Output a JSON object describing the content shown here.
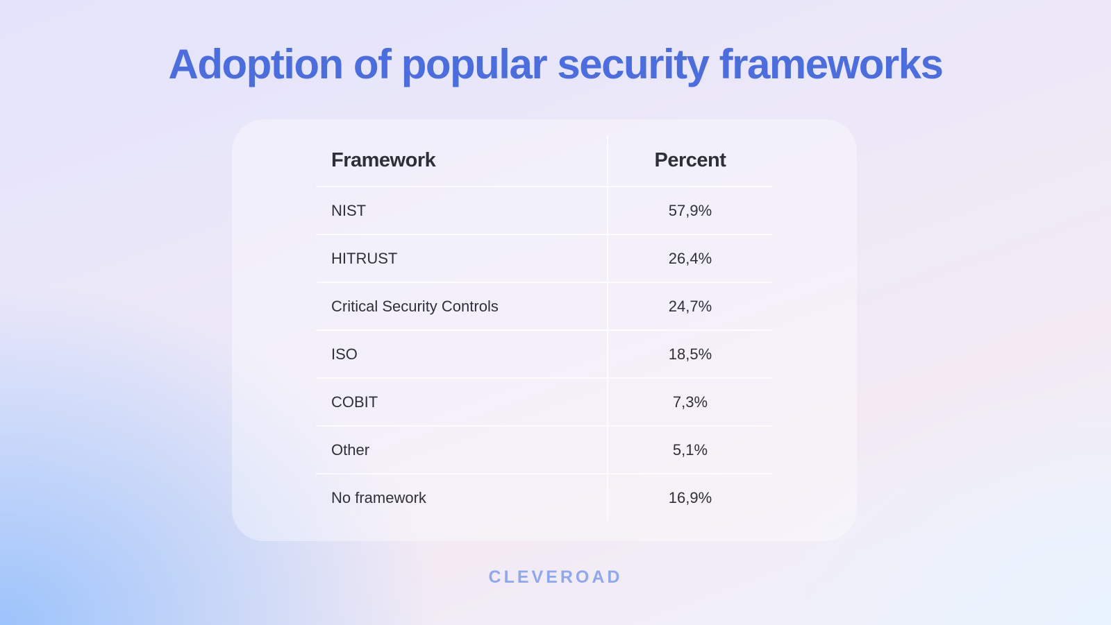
{
  "title": "Adoption of popular security frameworks",
  "logo": "CLEVEROAD",
  "colors": {
    "title": "#4a6ee0",
    "text": "#2e3038",
    "logo": "#8ea7ee"
  },
  "chart_data": {
    "type": "table",
    "columns": [
      "Framework",
      "Percent"
    ],
    "rows": [
      [
        "NIST",
        "57,9%"
      ],
      [
        "HITRUST",
        "26,4%"
      ],
      [
        "Critical Security Controls",
        "24,7%"
      ],
      [
        "ISO",
        "18,5%"
      ],
      [
        "COBIT",
        "7,3%"
      ],
      [
        "Other",
        "5,1%"
      ],
      [
        "No framework",
        "16,9%"
      ]
    ]
  }
}
